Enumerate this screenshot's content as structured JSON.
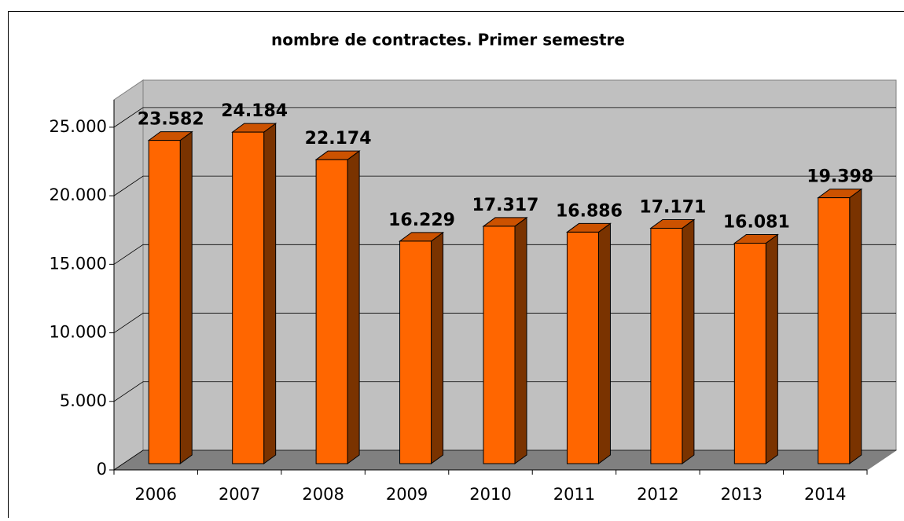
{
  "chart_data": {
    "type": "bar3d",
    "title": "nombre de contractes. Primer semestre",
    "categories": [
      "2006",
      "2007",
      "2008",
      "2009",
      "2010",
      "2011",
      "2012",
      "2013",
      "2014"
    ],
    "values": [
      23582,
      24184,
      22174,
      16229,
      17317,
      16886,
      17171,
      16081,
      19398
    ],
    "value_labels": [
      "23.582",
      "24.184",
      "22.174",
      "16.229",
      "17.317",
      "16.886",
      "17.171",
      "16.081",
      "19.398"
    ],
    "color": "#ff6600",
    "ylim": [
      0,
      27000
    ],
    "yticks": [
      0,
      {
        "value": 5000,
        "label": "5.000"
      },
      {
        "value": 10000,
        "label": "10.000"
      },
      {
        "value": 15000,
        "label": "15.000"
      },
      {
        "value": 20000,
        "label": "20.000"
      },
      {
        "value": 25000,
        "label": "25.000"
      }
    ],
    "grid": true
  }
}
